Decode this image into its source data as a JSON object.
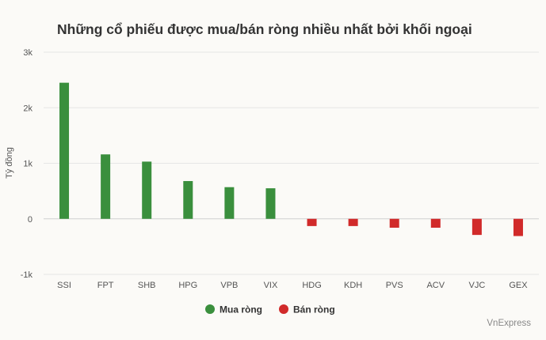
{
  "chart_data": {
    "type": "bar",
    "title": "Những cổ phiếu được mua/bán ròng nhiều nhất bởi khối ngoại",
    "ylabel": "Tỷ đồng",
    "ylim": [
      -1000,
      3000
    ],
    "yticks": [
      -1000,
      0,
      1000,
      2000,
      3000
    ],
    "ytick_labels": [
      "-1k",
      "0",
      "1k",
      "2k",
      "3k"
    ],
    "grid": true,
    "legend_position": "bottom-center",
    "categories": [
      "SSI",
      "FPT",
      "SHB",
      "HPG",
      "VPB",
      "VIX",
      "HDG",
      "KDH",
      "PVS",
      "ACV",
      "VJC",
      "GEX"
    ],
    "series": [
      {
        "name": "Mua ròng",
        "color": "#3a8f3d",
        "values": [
          2450,
          1160,
          1030,
          680,
          570,
          550,
          null,
          null,
          null,
          null,
          null,
          null
        ]
      },
      {
        "name": "Bán ròng",
        "color": "#d12a2a",
        "values": [
          null,
          null,
          null,
          null,
          null,
          null,
          -130,
          -130,
          -160,
          -160,
          -290,
          -310
        ]
      }
    ],
    "credit": "VnExpress"
  }
}
